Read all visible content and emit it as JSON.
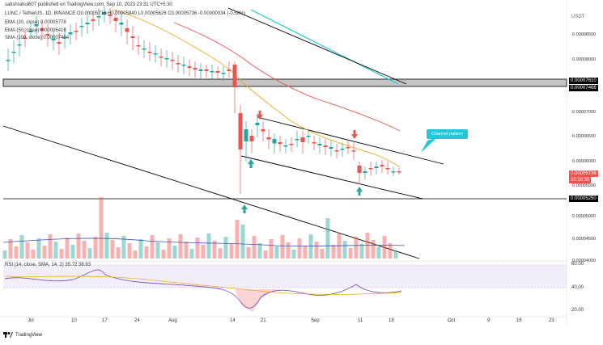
{
  "header": {
    "title": "satishrahul607 published on TradingView.com, Sep 10, 2023 23:31 UTC+5:30",
    "symbol_line": "LUNC / TetherUS, 1D, BINANCE  O0.00005716  H0.00005840  L0.00005626  C0.00005736  -0.00000034 (-0.58%)",
    "ema_line_1": "EMA (20, close)  0.00005778",
    "ema_line_2": "EMA (50, close)  0.00006419",
    "sma_line": "SMA (100, close)  0.00007454",
    "currency": "USDT"
  },
  "price_axis": {
    "ticks": [
      "0.00008500",
      "0.00008000",
      "0.00007500",
      "0.00007000",
      "0.00006500",
      "0.00006000",
      "0.00005500",
      "0.00005000",
      "0.00004500",
      "0.00004000"
    ],
    "highlighted": [
      {
        "value": "0.00007610",
        "style": "black"
      },
      {
        "value": "0.00007466",
        "style": "black"
      },
      {
        "value": "0.00005736",
        "style": "red"
      },
      {
        "value": "02:28:39",
        "style": "red"
      },
      {
        "value": "0.00005250",
        "style": "black"
      }
    ]
  },
  "date_axis": [
    "Jul",
    "10",
    "17",
    "24",
    "Aug",
    "14",
    "21",
    "Sep",
    "11",
    "18",
    "Oct",
    "9",
    "16",
    "23"
  ],
  "annotation": {
    "text": "Channel pattern"
  },
  "rsi": {
    "label": "RSI (14, close, SMA, 14, 2)  35.72  38.93",
    "ticks": [
      "60.00",
      "40.00",
      "20.00"
    ]
  },
  "footer": {
    "brand": "TradingView"
  },
  "colors": {
    "bull": "#26a69a",
    "bear": "#ef5350",
    "ema20": "#f5a623",
    "ema50": "#ef5350",
    "sma100": "#3f51b5",
    "rsi": "#7e57c2",
    "rsi_band": "#ede7f6",
    "zone": "#b0b0b0",
    "callout": "#26c6da"
  }
}
